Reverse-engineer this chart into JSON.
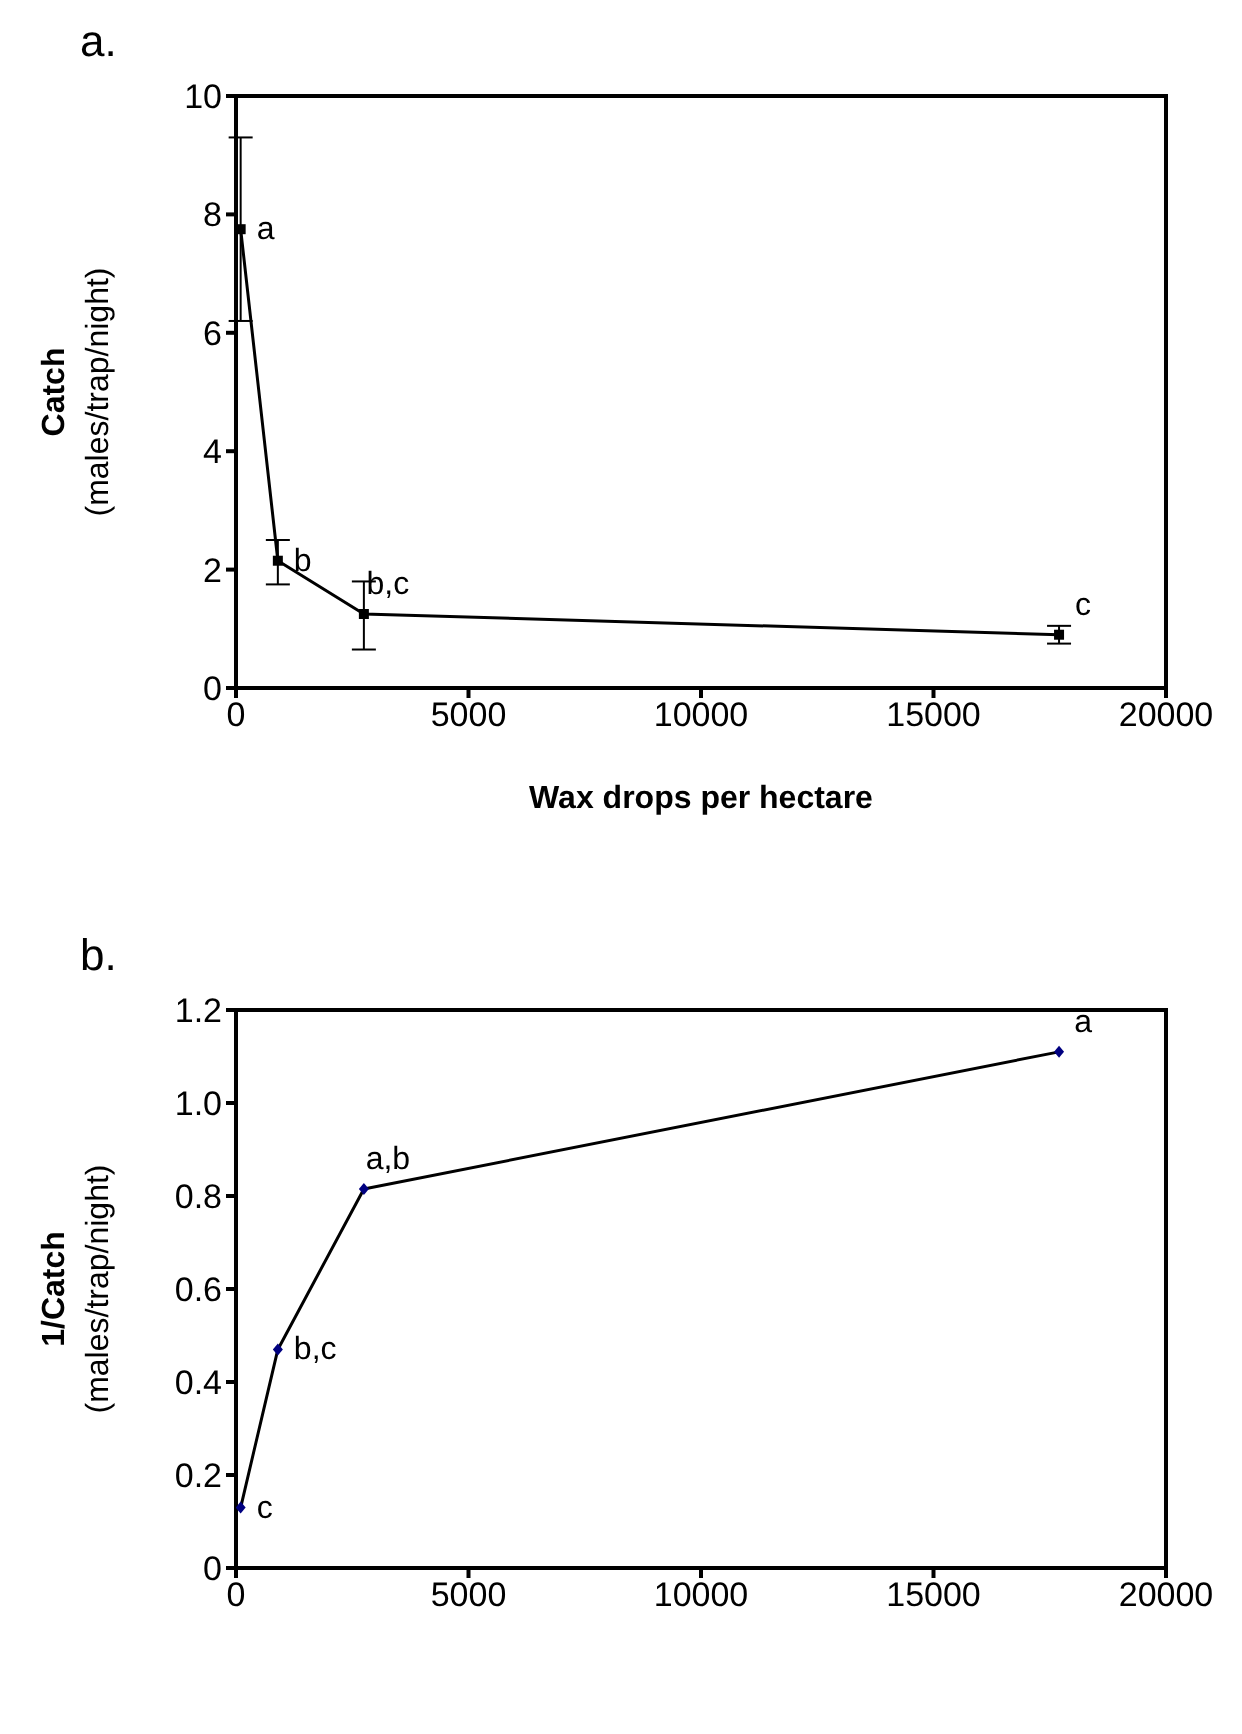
{
  "chart_data": [
    {
      "type": "line",
      "title": "a.",
      "xlabel": "Wax drops per hectare",
      "ylabel": "Catch\n(males/trap/night)",
      "marker": "square",
      "line_style": "solid",
      "grid": false,
      "x": [
        100,
        900,
        2750,
        17700
      ],
      "series": [
        {
          "color": "#000000",
          "values": [
            7.75,
            2.15,
            1.25,
            0.9
          ],
          "errors": [
            [
              6.2,
              9.3
            ],
            [
              1.75,
              2.5
            ],
            [
              0.65,
              1.8
            ],
            [
              0.75,
              1.05
            ]
          ]
        }
      ],
      "xlim": [
        0,
        20000
      ],
      "xticks": [
        0,
        5000,
        10000,
        15000,
        20000
      ],
      "ylim": [
        0,
        10
      ],
      "yticks": [
        0,
        2,
        4,
        6,
        8,
        10
      ],
      "annotations": [
        {
          "text": "a",
          "x": 100,
          "y": 7.75
        },
        {
          "text": "b",
          "x": 900,
          "y": 2.15
        },
        {
          "text": "b,c",
          "x": 2750,
          "y": 1.25
        },
        {
          "text": "c",
          "x": 17700,
          "y": 0.9
        }
      ]
    },
    {
      "type": "line",
      "title": "b.",
      "ylabel": "1/Catch\n(males/trap/night)",
      "marker": "diamond",
      "line_style": "solid",
      "grid": false,
      "x": [
        100,
        900,
        2750,
        17700
      ],
      "series": [
        {
          "color": "#000080",
          "values": [
            0.13,
            0.47,
            0.815,
            1.11
          ]
        }
      ],
      "xlim": [
        0,
        20000
      ],
      "xticks": [
        0,
        5000,
        10000,
        15000,
        20000
      ],
      "ylim": [
        0,
        1.2
      ],
      "yticks": [
        0,
        0.2,
        0.4,
        0.6,
        0.8,
        {
          "value": 1,
          "label": "1.0"
        },
        1.2
      ],
      "annotations": [
        {
          "text": "c",
          "x": 100,
          "y": 0.13
        },
        {
          "text": "b,c",
          "x": 900,
          "y": 0.47
        },
        {
          "text": "a,b",
          "x": 2750,
          "y": 0.815
        },
        {
          "text": "a",
          "x": 17700,
          "y": 1.11
        }
      ]
    }
  ]
}
